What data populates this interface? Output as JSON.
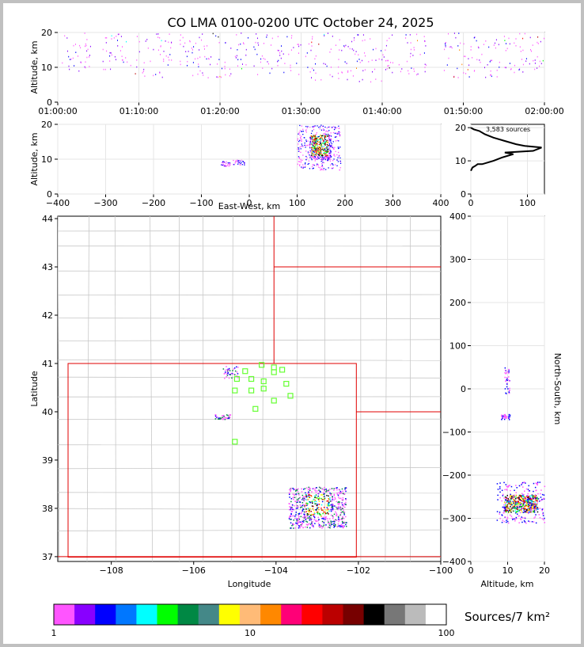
{
  "chart_data": [
    {
      "type": "scatter",
      "panel": "altitude-vs-time",
      "title": "CO LMA 0100-0200 UTC October 24, 2025",
      "ylabel": "Altitude, km",
      "xlim": [
        "01:00:00",
        "02:00:00"
      ],
      "ylim": [
        0,
        20
      ],
      "xticks": [
        "01:00:00",
        "01:10:00",
        "01:20:00",
        "01:30:00",
        "01:40:00",
        "01:50:00",
        "02:00:00"
      ],
      "yticks": [
        "0",
        "10",
        "20"
      ],
      "clusters": [
        {
          "t": [
            "01:00:30",
            "01:04:00"
          ],
          "alt": [
            8,
            20
          ]
        },
        {
          "t": [
            "01:05:30",
            "01:09:00"
          ],
          "alt": [
            8,
            20
          ]
        },
        {
          "t": [
            "01:09:30",
            "01:14:00"
          ],
          "alt": [
            7,
            20
          ]
        },
        {
          "t": [
            "01:15:00",
            "01:23:30"
          ],
          "alt": [
            7,
            20
          ]
        },
        {
          "t": [
            "01:24:00",
            "01:26:30"
          ],
          "alt": [
            7,
            20
          ]
        },
        {
          "t": [
            "01:27:00",
            "01:30:00"
          ],
          "alt": [
            8,
            20
          ]
        },
        {
          "t": [
            "01:30:30",
            "01:41:30"
          ],
          "alt": [
            6,
            20
          ]
        },
        {
          "t": [
            "01:42:00",
            "01:45:30"
          ],
          "alt": [
            8,
            20
          ]
        },
        {
          "t": [
            "01:47:30",
            "01:54:30"
          ],
          "alt": [
            7,
            20
          ]
        },
        {
          "t": [
            "01:55:00",
            "02:00:00"
          ],
          "alt": [
            8,
            20
          ]
        }
      ],
      "grid": true
    },
    {
      "type": "scatter",
      "panel": "altitude-vs-east-west",
      "xlabel": "East-West, km",
      "ylabel": "Altitude, km",
      "xlim": [
        -400,
        400
      ],
      "ylim": [
        0,
        20
      ],
      "xticks": [
        "−400",
        "−300",
        "−200",
        "−100",
        "0",
        "100",
        "200",
        "300",
        "400"
      ],
      "yticks": [
        "0",
        "10",
        "20"
      ],
      "clusters": [
        {
          "x": [
            100,
            190
          ],
          "alt": [
            7,
            20
          ]
        },
        {
          "x": [
            -60,
            -40
          ],
          "alt": [
            8,
            9.5
          ]
        },
        {
          "x": [
            -35,
            -10
          ],
          "alt": [
            8.5,
            10
          ]
        }
      ],
      "grid": true
    },
    {
      "type": "line",
      "panel": "altitude-histogram",
      "annotation": "3,583 sources",
      "xlim": [
        0,
        130
      ],
      "ylim": [
        0,
        21
      ],
      "xticks": [
        "0",
        "100"
      ],
      "yticks": [
        "0",
        "10",
        "20"
      ],
      "x": [
        0,
        3,
        8,
        12,
        20,
        30,
        40,
        55,
        75,
        60,
        110,
        125,
        95,
        80,
        60,
        40,
        25,
        15,
        5,
        0
      ],
      "y": [
        7,
        8,
        8.5,
        9,
        9,
        9.5,
        10,
        11,
        12,
        12.5,
        13,
        14,
        14.5,
        15,
        16,
        17,
        18,
        19,
        19.5,
        20
      ],
      "grid": true
    },
    {
      "type": "scatter",
      "panel": "plan-view",
      "xlabel": "Longitude",
      "ylabel": "Latitude",
      "xlim": [
        -109.3,
        -100
      ],
      "ylim": [
        36.9,
        44.05
      ],
      "xticks": [
        "−108",
        "−106",
        "−104",
        "−102",
        "−100"
      ],
      "yticks": [
        "37",
        "38",
        "39",
        "40",
        "41",
        "42",
        "43",
        "44"
      ],
      "clusters": [
        {
          "lon": [
            -103.7,
            -102.3
          ],
          "lat": [
            37.6,
            38.45
          ]
        },
        {
          "lon": [
            -105.3,
            -104.9
          ],
          "lat": [
            40.7,
            40.95
          ]
        },
        {
          "lon": [
            -105.5,
            -105.1
          ],
          "lat": [
            39.85,
            39.95
          ]
        }
      ],
      "stations": [
        {
          "lon": -104.35,
          "lat": 40.97
        },
        {
          "lon": -104.05,
          "lat": 40.92
        },
        {
          "lon": -103.85,
          "lat": 40.87
        },
        {
          "lon": -104.75,
          "lat": 40.84
        },
        {
          "lon": -104.05,
          "lat": 40.82
        },
        {
          "lon": -104.95,
          "lat": 40.68
        },
        {
          "lon": -104.6,
          "lat": 40.68
        },
        {
          "lon": -104.3,
          "lat": 40.63
        },
        {
          "lon": -103.75,
          "lat": 40.58
        },
        {
          "lon": -104.3,
          "lat": 40.48
        },
        {
          "lon": -104.6,
          "lat": 40.44
        },
        {
          "lon": -105.0,
          "lat": 40.44
        },
        {
          "lon": -103.65,
          "lat": 40.33
        },
        {
          "lon": -104.05,
          "lat": 40.23
        },
        {
          "lon": -104.5,
          "lat": 40.06
        },
        {
          "lon": -105.0,
          "lat": 39.38
        }
      ],
      "state_borders": [
        {
          "name": "colorado",
          "lon": [
            -109.05,
            -102.05
          ],
          "lat": [
            36.99,
            41.0
          ]
        }
      ]
    },
    {
      "type": "scatter",
      "panel": "north-south-vs-altitude",
      "xlabel": "Altitude, km",
      "ylabel": "North-South, km",
      "xlim": [
        0,
        20
      ],
      "ylim": [
        -400,
        400
      ],
      "xticks": [
        "0",
        "10",
        "20"
      ],
      "yticks": [
        "−400",
        "−300",
        "−200",
        "−100",
        "0",
        "100",
        "200",
        "300",
        "400"
      ],
      "clusters": [
        {
          "alt": [
            7,
            20
          ],
          "ns": [
            -310,
            -215
          ]
        },
        {
          "alt": [
            8,
            10.5
          ],
          "ns": [
            -70,
            -58
          ]
        },
        {
          "alt": [
            9,
            10.5
          ],
          "ns": [
            -10,
            55
          ]
        }
      ],
      "grid": true
    },
    {
      "type": "colorbar",
      "label": "Sources/7 km²",
      "scale": "log",
      "range": [
        1,
        100
      ],
      "ticks": [
        "1",
        "10",
        "100"
      ],
      "colors": [
        "#ff55ff",
        "#8800ff",
        "#0000ff",
        "#0077ff",
        "#00ffff",
        "#00ff00",
        "#008844",
        "#448888",
        "#ffff00",
        "#ffbb77",
        "#ff8800",
        "#ff0077",
        "#ff0000",
        "#bb0000",
        "#770000",
        "#000000",
        "#777777",
        "#bbbbbb",
        "#ffffff"
      ]
    }
  ]
}
